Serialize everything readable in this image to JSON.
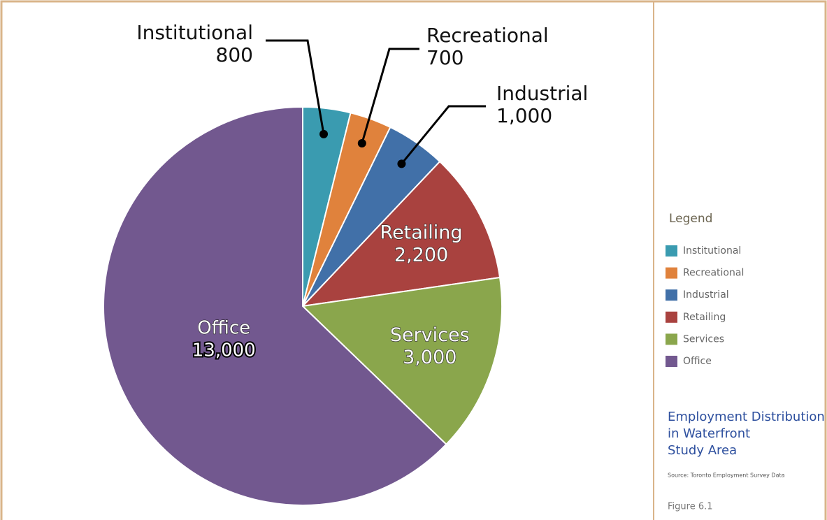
{
  "chart_data": {
    "type": "pie",
    "categories": [
      "Institutional",
      "Recreational",
      "Industrial",
      "Retailing",
      "Services",
      "Office"
    ],
    "values": [
      800,
      700,
      1000,
      2200,
      3000,
      13000
    ],
    "value_labels": [
      "800",
      "700",
      "1,000",
      "2,200",
      "3,000",
      "13,000"
    ],
    "colors": [
      "#3a9bb0",
      "#e0823c",
      "#4170a8",
      "#a9423f",
      "#8aa64c",
      "#72588f"
    ],
    "legend_title": "Legend",
    "title": [
      "Employment Distribution",
      "in Waterfront",
      "Study Area"
    ],
    "source": "Source: Toronto Employment Survey Data",
    "figure": "Figure 6.1"
  }
}
